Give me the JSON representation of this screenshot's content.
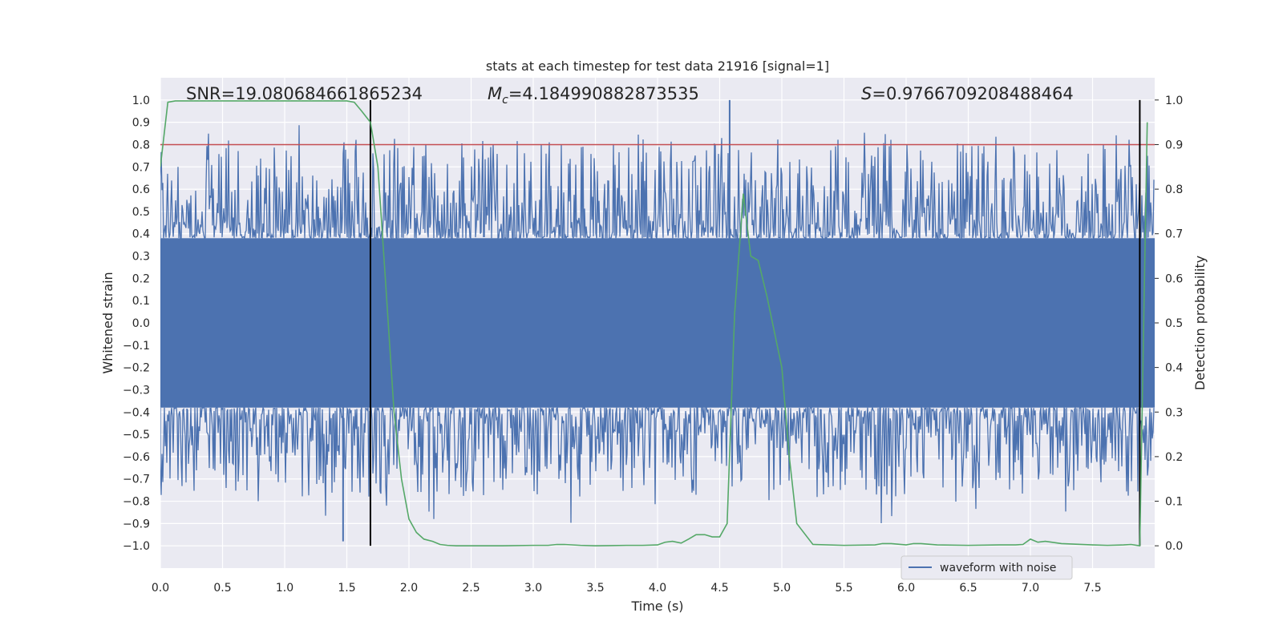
{
  "chart_data": {
    "type": "line",
    "title": "stats at each timestep for test data 21916 [signal=1]",
    "xlabel": "Time (s)",
    "ylabel": "Whitened strain",
    "ylabel_right": "Detection probability",
    "xlim": [
      0.0,
      8.0
    ],
    "ylim": [
      -1.1,
      1.1
    ],
    "ylim_right": [
      -0.05,
      1.05
    ],
    "x_ticks": [
      "0.0",
      "0.5",
      "1.0",
      "1.5",
      "2.0",
      "2.5",
      "3.0",
      "3.5",
      "4.0",
      "4.5",
      "5.0",
      "5.5",
      "6.0",
      "6.5",
      "7.0",
      "7.5"
    ],
    "x_tick_values": [
      0.0,
      0.5,
      1.0,
      1.5,
      2.0,
      2.5,
      3.0,
      3.5,
      4.0,
      4.5,
      5.0,
      5.5,
      6.0,
      6.5,
      7.0,
      7.5
    ],
    "y_ticks": [
      "1.0",
      "0.9",
      "0.8",
      "0.7",
      "0.6",
      "0.5",
      "0.4",
      "0.3",
      "0.2",
      "0.1",
      "0.0",
      "−0.1",
      "−0.2",
      "−0.3",
      "−0.4",
      "−0.5",
      "−0.6",
      "−0.7",
      "−0.8",
      "−0.9",
      "−1.0"
    ],
    "y_tick_values": [
      1.0,
      0.9,
      0.8,
      0.7,
      0.6,
      0.5,
      0.4,
      0.3,
      0.2,
      0.1,
      0.0,
      -0.1,
      -0.2,
      -0.3,
      -0.4,
      -0.5,
      -0.6,
      -0.7,
      -0.8,
      -0.9,
      -1.0
    ],
    "y_right_ticks": [
      "1.0",
      "0.9",
      "0.8",
      "0.7",
      "0.6",
      "0.5",
      "0.4",
      "0.3",
      "0.2",
      "0.1",
      "0.0"
    ],
    "y_right_tick_values": [
      1.0,
      0.9,
      0.8,
      0.7,
      0.6,
      0.5,
      0.4,
      0.3,
      0.2,
      0.1,
      0.0
    ],
    "grid": true,
    "legend": {
      "entries": [
        "waveform with noise"
      ],
      "placement": "lower-right"
    },
    "annotations": {
      "snr": "SNR=19.080684661865234",
      "mc_symbol": "M",
      "mc_sub": "c",
      "mc_value": "=4.184990882873535",
      "s_symbol": "S",
      "s_value": "=0.9766709208488464"
    },
    "colors": {
      "waveform": "#4c72b0",
      "probability": "#55a868",
      "threshold": "#c44e52",
      "marker": "#000000",
      "background": "#eaeaf2",
      "grid": "#ffffff"
    },
    "threshold_right": 0.9,
    "vertical_markers_x": [
      1.69,
      7.88
    ],
    "waveform": {
      "band_low": -0.38,
      "band_high": 0.38,
      "min": -0.98,
      "max": 1.0
    },
    "series": [
      {
        "name": "Detection probability",
        "axis": "right",
        "x": [
          0.0,
          0.06,
          0.12,
          0.25,
          0.5,
          0.75,
          1.0,
          1.25,
          1.38,
          1.5,
          1.56,
          1.62,
          1.69,
          1.75,
          1.81,
          1.88,
          1.94,
          2.0,
          2.06,
          2.12,
          2.19,
          2.25,
          2.31,
          2.38,
          2.5,
          2.75,
          3.0,
          3.12,
          3.19,
          3.25,
          3.38,
          3.5,
          3.75,
          3.88,
          4.0,
          4.06,
          4.12,
          4.19,
          4.25,
          4.31,
          4.38,
          4.44,
          4.5,
          4.56,
          4.62,
          4.69,
          4.75,
          4.81,
          4.88,
          4.94,
          5.0,
          5.06,
          5.12,
          5.25,
          5.5,
          5.75,
          5.81,
          5.88,
          6.0,
          6.06,
          6.12,
          6.25,
          6.5,
          6.75,
          6.88,
          6.94,
          7.0,
          7.06,
          7.12,
          7.25,
          7.5,
          7.62,
          7.75,
          7.81,
          7.88,
          7.94
        ],
        "values": [
          0.85,
          0.995,
          0.998,
          0.998,
          0.998,
          0.998,
          0.998,
          0.998,
          0.998,
          0.998,
          0.995,
          0.975,
          0.95,
          0.85,
          0.6,
          0.3,
          0.15,
          0.06,
          0.03,
          0.015,
          0.01,
          0.003,
          0.001,
          0.0,
          0.0,
          0.0,
          0.001,
          0.001,
          0.003,
          0.003,
          0.001,
          0.0,
          0.001,
          0.001,
          0.002,
          0.008,
          0.01,
          0.006,
          0.015,
          0.025,
          0.025,
          0.02,
          0.02,
          0.05,
          0.52,
          0.79,
          0.65,
          0.64,
          0.56,
          0.48,
          0.4,
          0.2,
          0.05,
          0.003,
          0.001,
          0.002,
          0.005,
          0.005,
          0.002,
          0.005,
          0.005,
          0.002,
          0.001,
          0.002,
          0.002,
          0.003,
          0.015,
          0.008,
          0.01,
          0.005,
          0.002,
          0.001,
          0.002,
          0.003,
          0.0,
          0.95
        ]
      }
    ]
  }
}
